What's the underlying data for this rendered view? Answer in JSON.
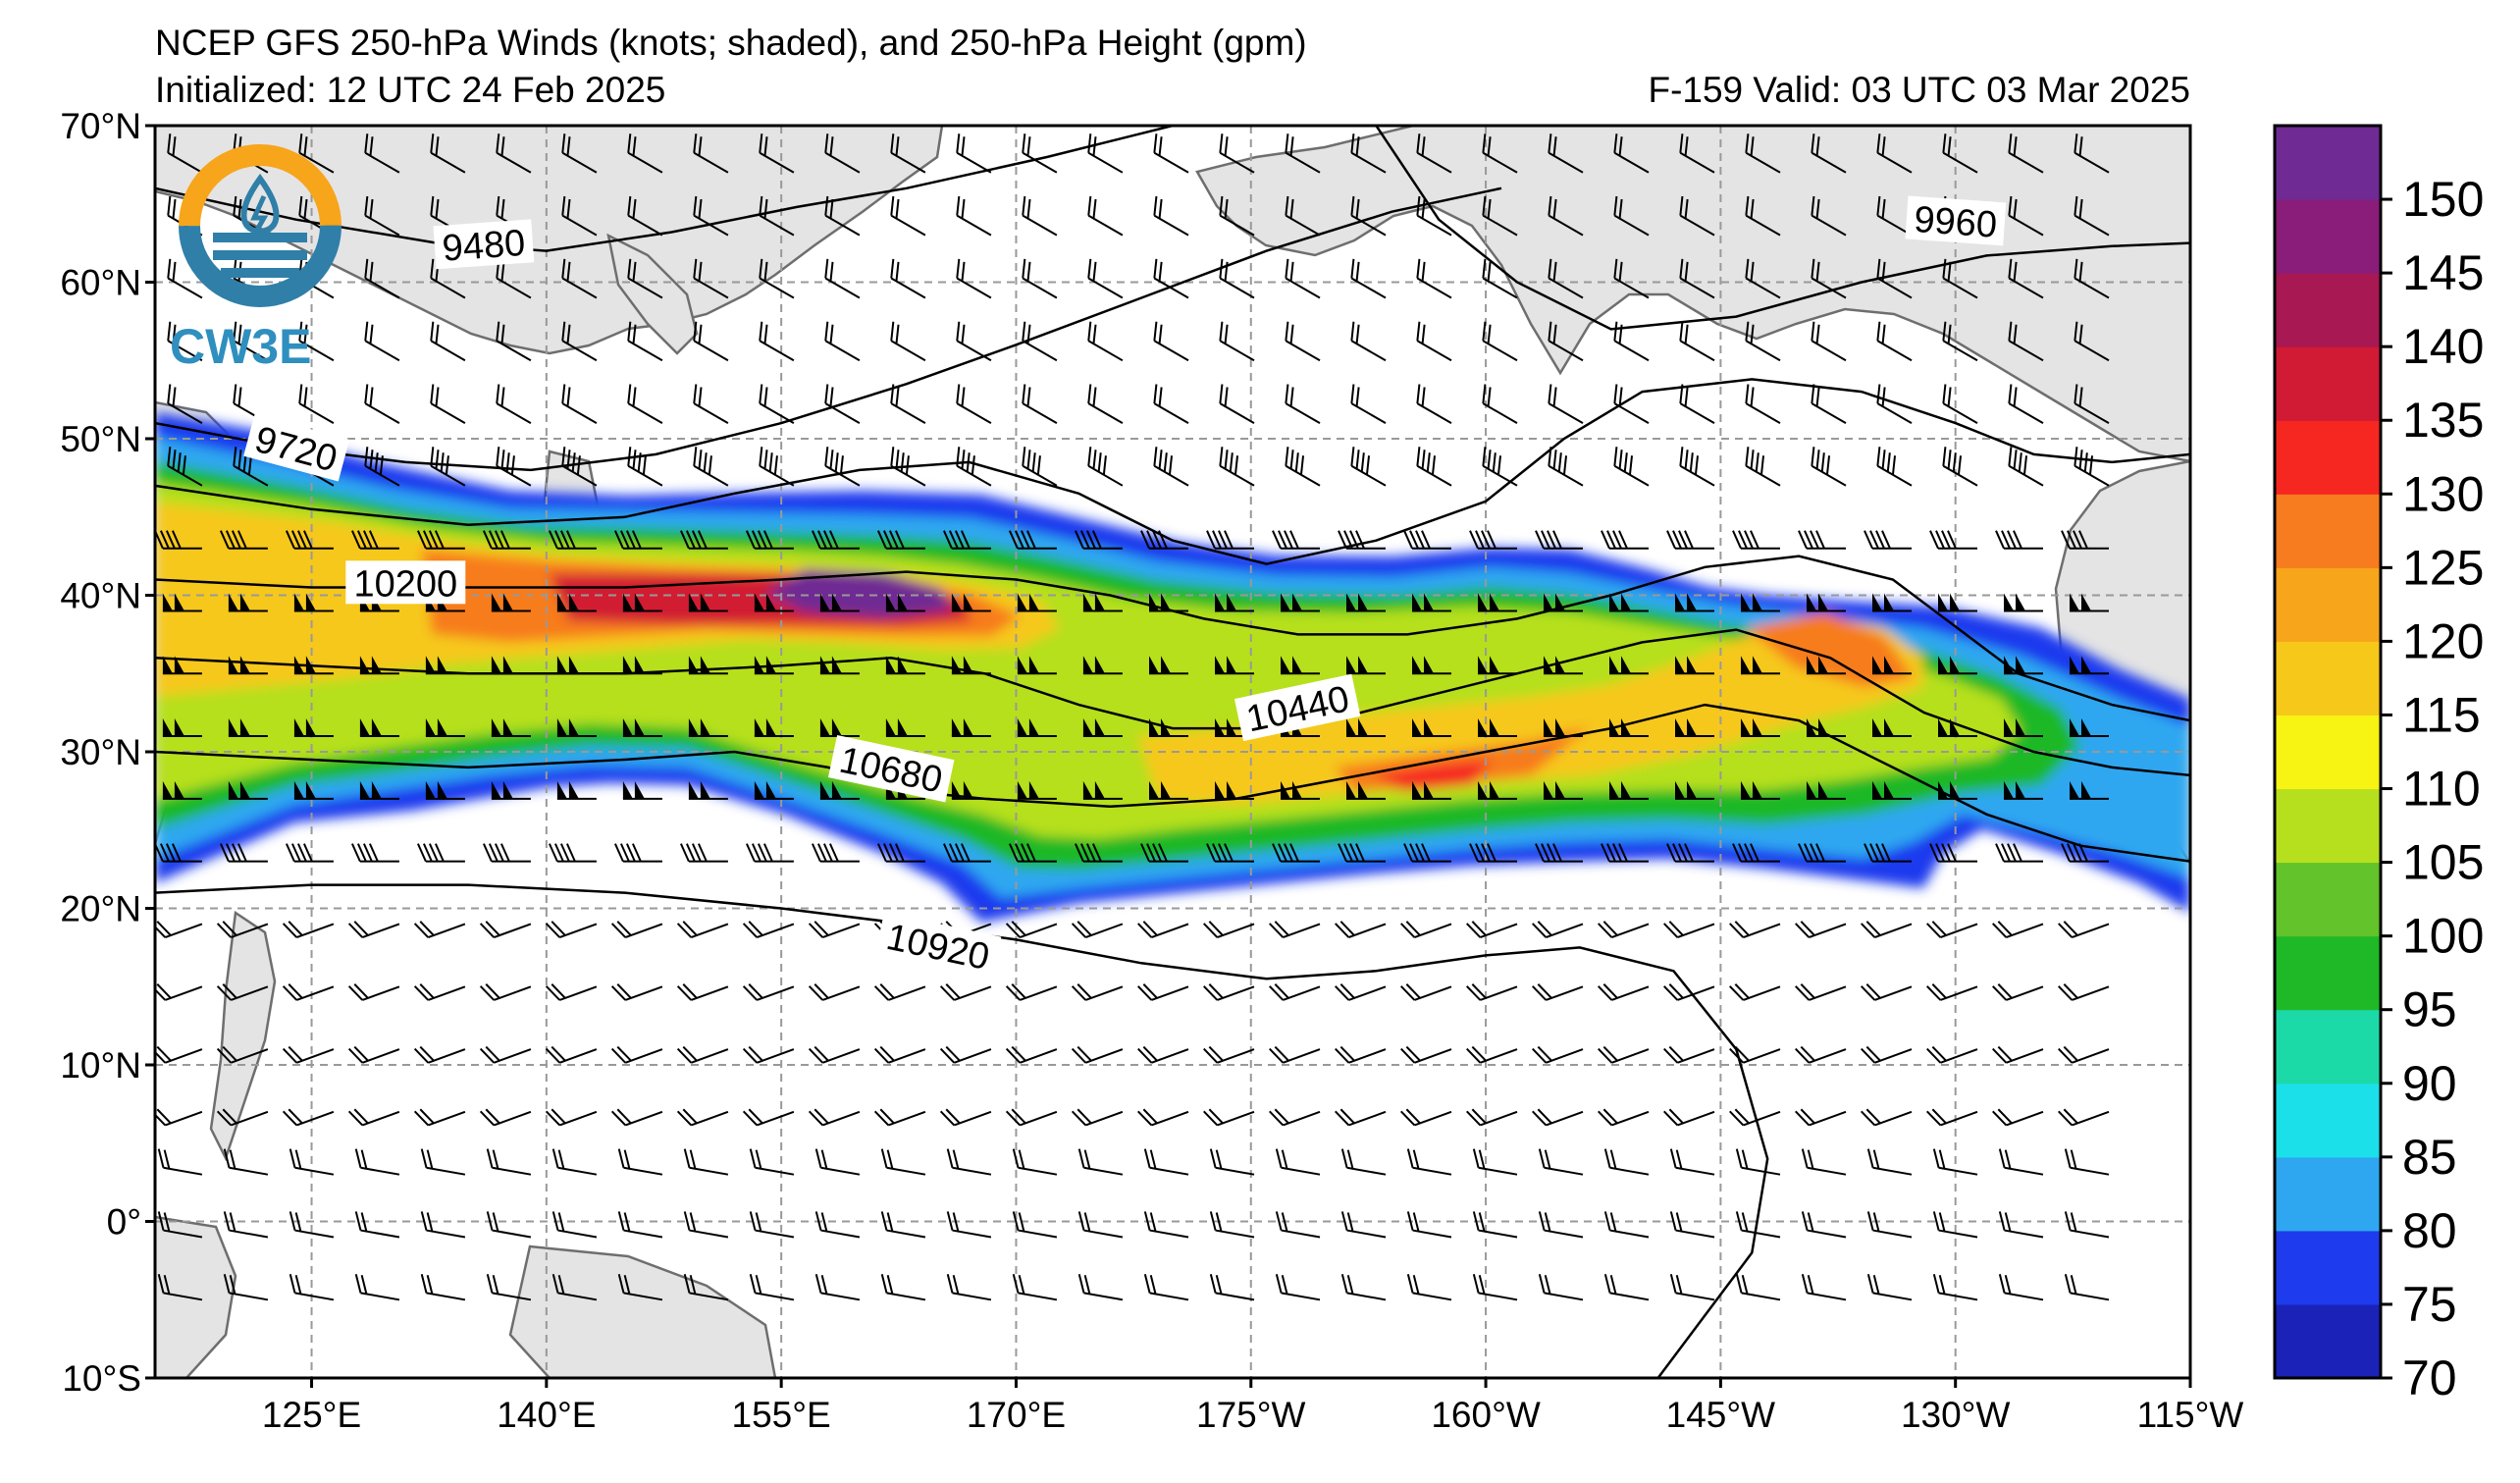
{
  "title": {
    "line1": "NCEP GFS 250-hPa Winds (knots; shaded), and 250-hPa Height (gpm)",
    "line2_left": "Initialized: 12 UTC 24 Feb 2025",
    "line2_right": "F-159  Valid: 03 UTC 03 Mar 2025"
  },
  "logo": {
    "text": "CW3E"
  },
  "map": {
    "extent": {
      "lon_min": 115,
      "lon_max": 245,
      "lat_min": -10,
      "lat_max": 70
    },
    "lat_ticks": [
      {
        "lat": 70,
        "label": "70°N"
      },
      {
        "lat": 60,
        "label": "60°N"
      },
      {
        "lat": 50,
        "label": "50°N"
      },
      {
        "lat": 40,
        "label": "40°N"
      },
      {
        "lat": 30,
        "label": "30°N"
      },
      {
        "lat": 20,
        "label": "20°N"
      },
      {
        "lat": 10,
        "label": "10°N"
      },
      {
        "lat": 0,
        "label": "0°"
      },
      {
        "lat": -10,
        "label": "10°S"
      }
    ],
    "lon_ticks": [
      {
        "lon": 125,
        "label": "125°E"
      },
      {
        "lon": 140,
        "label": "140°E"
      },
      {
        "lon": 155,
        "label": "155°E"
      },
      {
        "lon": 170,
        "label": "170°E"
      },
      {
        "lon": 185,
        "label": "175°W"
      },
      {
        "lon": 200,
        "label": "160°W"
      },
      {
        "lon": 215,
        "label": "145°W"
      },
      {
        "lon": 230,
        "label": "130°W"
      },
      {
        "lon": 245,
        "label": "115°W"
      }
    ],
    "height_contours": [
      {
        "value": 9480,
        "label": "9480",
        "points": [
          [
            115,
            66
          ],
          [
            124,
            64
          ],
          [
            133,
            62.5
          ],
          [
            140,
            62
          ],
          [
            148,
            63.2
          ],
          [
            156,
            64.8
          ],
          [
            163,
            66
          ],
          [
            172,
            68
          ],
          [
            180,
            70
          ]
        ]
      },
      {
        "value": 9720,
        "label": "9720",
        "points": [
          [
            115,
            51
          ],
          [
            123,
            49.5
          ],
          [
            131,
            48.5
          ],
          [
            139,
            48
          ],
          [
            147,
            49
          ],
          [
            155,
            51
          ],
          [
            163,
            53.5
          ],
          [
            170,
            56
          ],
          [
            178,
            59
          ],
          [
            186,
            62
          ],
          [
            194,
            64.5
          ],
          [
            201,
            66
          ]
        ]
      },
      {
        "value": 9960,
        "label": "9960",
        "points": [
          [
            193,
            70
          ],
          [
            197,
            64
          ],
          [
            202,
            60
          ],
          [
            208,
            57
          ],
          [
            216,
            57.8
          ],
          [
            224,
            60
          ],
          [
            232,
            61.7
          ],
          [
            240,
            62.3
          ],
          [
            245,
            62.5
          ]
        ]
      },
      {
        "value": 9960,
        "label": "",
        "points": [
          [
            115,
            47
          ],
          [
            125,
            45.5
          ],
          [
            135,
            44.5
          ],
          [
            145,
            45
          ],
          [
            152,
            46.5
          ],
          [
            160,
            48
          ],
          [
            167,
            48.5
          ],
          [
            174,
            46.5
          ],
          [
            180,
            43.5
          ],
          [
            186,
            42
          ],
          [
            193,
            43.5
          ],
          [
            200,
            46
          ],
          [
            205,
            50
          ],
          [
            210,
            53
          ],
          [
            217,
            53.8
          ],
          [
            224,
            53
          ],
          [
            230,
            51
          ],
          [
            235,
            49
          ],
          [
            240,
            48.5
          ],
          [
            245,
            49
          ]
        ]
      },
      {
        "value": 10200,
        "label": "10200",
        "points": [
          [
            115,
            41
          ],
          [
            125,
            40.5
          ],
          [
            135,
            40.5
          ],
          [
            145,
            40.5
          ],
          [
            155,
            41
          ],
          [
            163,
            41.5
          ],
          [
            170,
            41
          ],
          [
            176,
            40
          ],
          [
            182,
            38.5
          ],
          [
            188,
            37.5
          ],
          [
            195,
            37.5
          ],
          [
            202,
            38.5
          ],
          [
            208,
            40
          ],
          [
            214,
            41.8
          ],
          [
            220,
            42.5
          ],
          [
            226,
            41
          ],
          [
            230,
            38
          ],
          [
            234,
            35
          ],
          [
            240,
            33
          ],
          [
            245,
            32
          ]
        ]
      },
      {
        "value": 10440,
        "label": "10440",
        "points": [
          [
            115,
            36
          ],
          [
            125,
            35.5
          ],
          [
            135,
            35
          ],
          [
            145,
            35
          ],
          [
            155,
            35.5
          ],
          [
            162,
            36
          ],
          [
            168,
            35
          ],
          [
            174,
            33
          ],
          [
            180,
            31.5
          ],
          [
            186,
            31.5
          ],
          [
            192,
            32.5
          ],
          [
            198,
            34
          ],
          [
            204,
            35.5
          ],
          [
            210,
            37
          ],
          [
            216,
            37.8
          ],
          [
            222,
            36
          ],
          [
            228,
            32.5
          ],
          [
            235,
            30
          ],
          [
            240,
            29
          ],
          [
            245,
            28.5
          ]
        ]
      },
      {
        "value": 10680,
        "label": "10680",
        "points": [
          [
            115,
            30
          ],
          [
            125,
            29.5
          ],
          [
            135,
            29
          ],
          [
            145,
            29.5
          ],
          [
            152,
            30
          ],
          [
            158,
            29
          ],
          [
            163,
            27.5
          ],
          [
            168,
            27
          ],
          [
            176,
            26.5
          ],
          [
            184,
            27
          ],
          [
            192,
            28.5
          ],
          [
            200,
            30
          ],
          [
            208,
            31.5
          ],
          [
            214,
            33
          ],
          [
            220,
            32
          ],
          [
            226,
            29
          ],
          [
            232,
            26
          ],
          [
            238,
            24
          ],
          [
            245,
            23
          ]
        ]
      },
      {
        "value": 10920,
        "label": "10920",
        "points": [
          [
            115,
            21
          ],
          [
            125,
            21.5
          ],
          [
            135,
            21.5
          ],
          [
            145,
            21
          ],
          [
            155,
            20
          ],
          [
            163,
            19
          ],
          [
            170,
            18
          ],
          [
            178,
            16.5
          ],
          [
            186,
            15.5
          ],
          [
            193,
            16
          ],
          [
            200,
            17
          ],
          [
            206,
            17.5
          ],
          [
            212,
            16
          ],
          [
            216,
            11
          ],
          [
            218,
            4
          ],
          [
            217,
            -2
          ],
          [
            214,
            -6
          ],
          [
            211,
            -10
          ]
        ]
      }
    ],
    "contour_labels": [
      {
        "text": "9480",
        "lon": 136,
        "lat": 62.3,
        "angle": -4
      },
      {
        "text": "9720",
        "lon": 124,
        "lat": 49.3,
        "angle": 15
      },
      {
        "text": "9960",
        "lon": 230,
        "lat": 63.8,
        "angle": 4
      },
      {
        "text": "10200",
        "lon": 131,
        "lat": 40.7,
        "angle": 0
      },
      {
        "text": "10440",
        "lon": 188,
        "lat": 32.7,
        "angle": -12
      },
      {
        "text": "10680",
        "lon": 162,
        "lat": 28.8,
        "angle": 12
      },
      {
        "text": "10920",
        "lon": 165,
        "lat": 17.5,
        "angle": 12
      }
    ]
  },
  "colorbar": {
    "ticks": [
      "70",
      "75",
      "80",
      "85",
      "90",
      "95",
      "100",
      "105",
      "110",
      "115",
      "120",
      "125",
      "130",
      "135",
      "140",
      "145",
      "150"
    ],
    "colors": [
      "#1a22b8",
      "#1f3bee",
      "#2ea7f0",
      "#1be0ea",
      "#1cd9a8",
      "#1fb826",
      "#62c32a",
      "#b6e01e",
      "#f7f312",
      "#f6c81a",
      "#f7a51b",
      "#f77c1f",
      "#f62621",
      "#d11a33",
      "#a81852",
      "#8a1c7a",
      "#6f2a93"
    ]
  },
  "chart_data": {
    "type": "heatmap",
    "description": "",
    "color_scale": {
      "min": 70,
      "max": 155,
      "step": 5,
      "unit": "knots"
    },
    "max_wind_core": {
      "lon": 163,
      "lat": 40.5,
      "value": 150
    }
  }
}
